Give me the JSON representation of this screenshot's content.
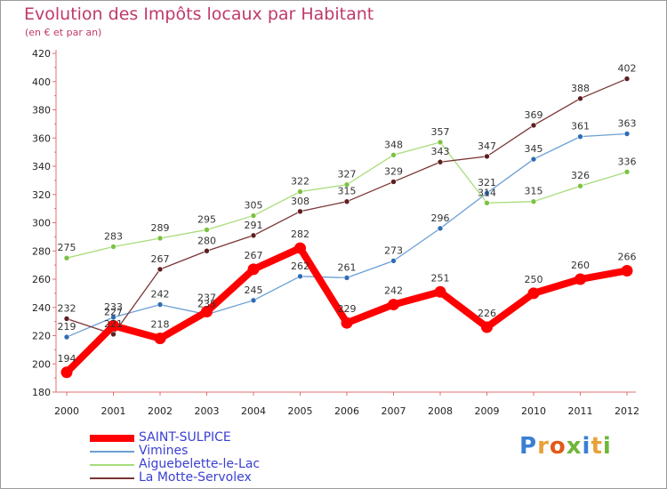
{
  "header": {
    "title": "Evolution des Impôts locaux par Habitant",
    "subtitle": "(en € et par an)"
  },
  "brand": {
    "text": "Proxiti",
    "colors": [
      "#3a7fd4",
      "#e8a13a",
      "#e05a1b",
      "#6fb63a",
      "#3a7fd4",
      "#e8a13a",
      "#6fb63a"
    ]
  },
  "chart_data": {
    "type": "line",
    "title": "Evolution des Impôts locaux par Habitant",
    "subtitle": "(en € et par an)",
    "xlabel": "",
    "ylabel": "",
    "ylim": [
      180,
      420
    ],
    "yticks": [
      180,
      200,
      220,
      240,
      260,
      280,
      300,
      320,
      340,
      360,
      380,
      400,
      420
    ],
    "categories": [
      "2000",
      "2001",
      "2002",
      "2003",
      "2004",
      "2005",
      "2006",
      "2007",
      "2008",
      "2009",
      "2010",
      "2011",
      "2012"
    ],
    "grid": false,
    "legend_position": "bottom-left",
    "series": [
      {
        "name": "SAINT-SULPICE",
        "color": "#ff0000",
        "marker": "#ff0000",
        "weight": "bold",
        "values": [
          194,
          227,
          218,
          237,
          267,
          282,
          229,
          242,
          251,
          226,
          250,
          260,
          266
        ]
      },
      {
        "name": "Vimines",
        "color": "#6a9fd4",
        "marker": "#2e6db5",
        "weight": "thin",
        "values": [
          219,
          233,
          242,
          235,
          245,
          262,
          261,
          273,
          296,
          321,
          345,
          361,
          363
        ]
      },
      {
        "name": "Aiguebelette-le-Lac",
        "color": "#a8dc7a",
        "marker": "#7bc242",
        "weight": "thin",
        "values": [
          275,
          283,
          289,
          295,
          305,
          322,
          327,
          348,
          357,
          314,
          315,
          326,
          336
        ]
      },
      {
        "name": "La Motte-Servolex",
        "color": "#7a3535",
        "marker": "#5e1f1f",
        "weight": "thin",
        "values": [
          232,
          221,
          267,
          280,
          291,
          308,
          315,
          329,
          343,
          347,
          369,
          388,
          402
        ]
      }
    ]
  }
}
